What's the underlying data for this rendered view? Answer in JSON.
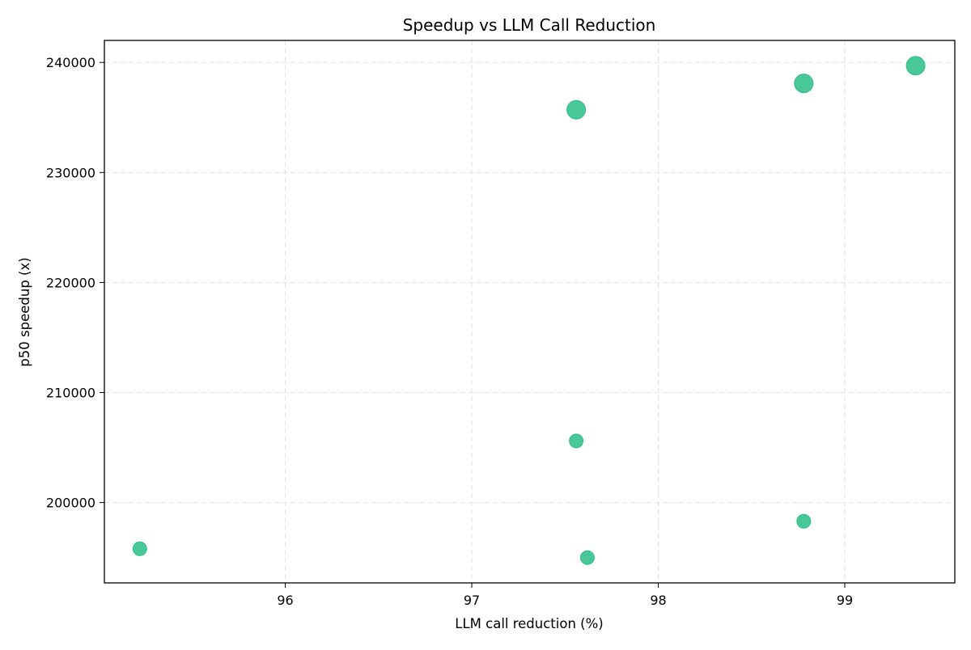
{
  "chart_data": {
    "type": "scatter",
    "title": "Speedup vs LLM Call Reduction",
    "xlabel": "LLM call reduction (%)",
    "ylabel": "p50 speedup (x)",
    "xlim": [
      95.03,
      99.59
    ],
    "ylim": [
      192700,
      242000
    ],
    "xticks": [
      96,
      97,
      98,
      99
    ],
    "yticks": [
      200000,
      210000,
      220000,
      230000,
      240000
    ],
    "grid": true,
    "points": [
      {
        "x": 95.22,
        "y": 195800,
        "size": "small"
      },
      {
        "x": 97.56,
        "y": 205600,
        "size": "small"
      },
      {
        "x": 97.62,
        "y": 195000,
        "size": "small"
      },
      {
        "x": 98.78,
        "y": 198300,
        "size": "small"
      },
      {
        "x": 97.56,
        "y": 235700,
        "size": "large"
      },
      {
        "x": 98.78,
        "y": 238100,
        "size": "large"
      },
      {
        "x": 99.38,
        "y": 239700,
        "size": "large"
      }
    ],
    "marker_color": "#2fbf8a"
  }
}
